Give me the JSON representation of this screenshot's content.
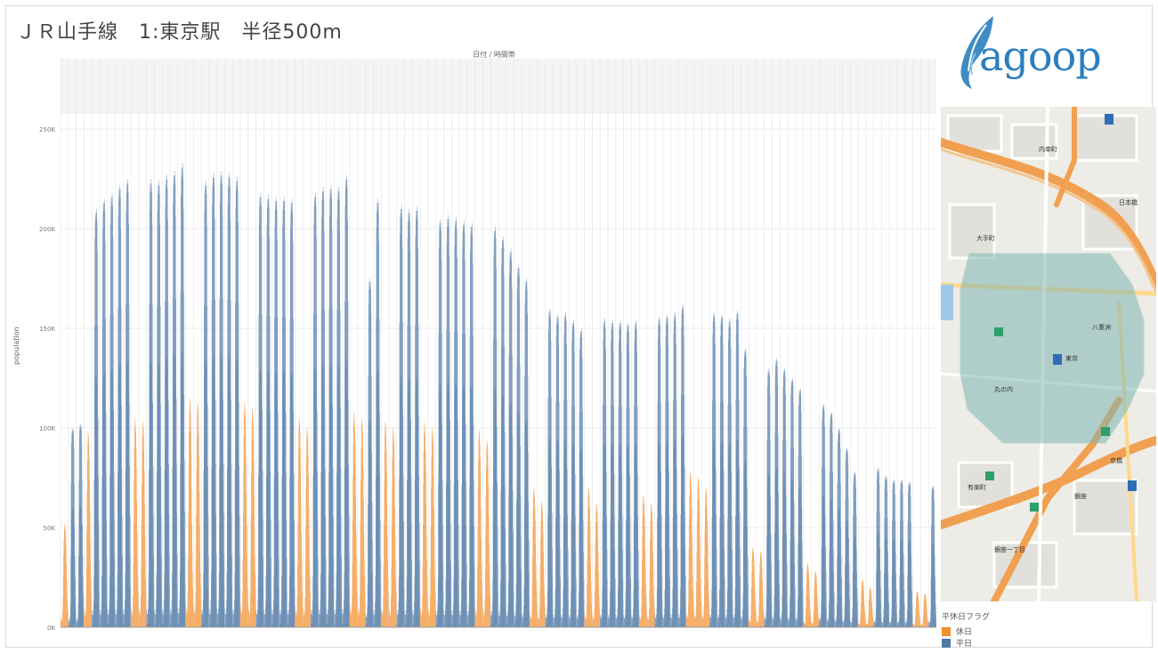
{
  "title": "ＪＲ山手線　1:東京駅　半径500m",
  "column_header_title": "日付 / 時間帯",
  "y_axis_title": "population",
  "logo_text": "agoop",
  "legend": {
    "title": "平休日フラグ",
    "items": [
      {
        "label": "休日",
        "color": "#f28e2b"
      },
      {
        "label": "平日",
        "color": "#4e79a7"
      }
    ]
  },
  "map": {
    "labels": [
      "内幸町",
      "大手町",
      "東京",
      "丸の内",
      "有楽町",
      "銀座",
      "日本橋",
      "京橋",
      "八重洲",
      "銀座一丁目"
    ]
  },
  "chart_data": {
    "type": "bar",
    "title": "ＪＲ山手線　1:東京駅　半径500m",
    "xlabel": "日付 / 時間帯",
    "ylabel": "population",
    "ylim": [
      0,
      250000
    ],
    "y_ticks": [
      "0K",
      "50K",
      "100K",
      "150K",
      "200K",
      "250K"
    ],
    "y_tick_values": [
      0,
      50000,
      100000,
      150000,
      200000,
      250000
    ],
    "series_colors": {
      "休日": "#f28e2b",
      "平日": "#4e79a7"
    },
    "days": [
      {
        "flag": "休日",
        "peak": 52000
      },
      {
        "flag": "平日",
        "peak": 100000
      },
      {
        "flag": "平日",
        "peak": 102000
      },
      {
        "flag": "休日",
        "peak": 98000
      },
      {
        "flag": "平日",
        "peak": 210000
      },
      {
        "flag": "平日",
        "peak": 215000
      },
      {
        "flag": "平日",
        "peak": 218000
      },
      {
        "flag": "平日",
        "peak": 222000
      },
      {
        "flag": "平日",
        "peak": 225000
      },
      {
        "flag": "休日",
        "peak": 105000
      },
      {
        "flag": "休日",
        "peak": 103000
      },
      {
        "flag": "平日",
        "peak": 225000
      },
      {
        "flag": "平日",
        "peak": 224000
      },
      {
        "flag": "平日",
        "peak": 227000
      },
      {
        "flag": "平日",
        "peak": 229000
      },
      {
        "flag": "平日",
        "peak": 233000
      },
      {
        "flag": "休日",
        "peak": 115000
      },
      {
        "flag": "休日",
        "peak": 113000
      },
      {
        "flag": "平日",
        "peak": 224000
      },
      {
        "flag": "平日",
        "peak": 228000
      },
      {
        "flag": "平日",
        "peak": 229000
      },
      {
        "flag": "平日",
        "peak": 228000
      },
      {
        "flag": "平日",
        "peak": 226000
      },
      {
        "flag": "休日",
        "peak": 113000
      },
      {
        "flag": "休日",
        "peak": 110000
      },
      {
        "flag": "平日",
        "peak": 218000
      },
      {
        "flag": "平日",
        "peak": 217000
      },
      {
        "flag": "平日",
        "peak": 216000
      },
      {
        "flag": "平日",
        "peak": 216000
      },
      {
        "flag": "平日",
        "peak": 215000
      },
      {
        "flag": "休日",
        "peak": 105000
      },
      {
        "flag": "休日",
        "peak": 100000
      },
      {
        "flag": "平日",
        "peak": 218000
      },
      {
        "flag": "平日",
        "peak": 221000
      },
      {
        "flag": "平日",
        "peak": 222000
      },
      {
        "flag": "平日",
        "peak": 221000
      },
      {
        "flag": "平日",
        "peak": 227000
      },
      {
        "flag": "休日",
        "peak": 108000
      },
      {
        "flag": "休日",
        "peak": 105000
      },
      {
        "flag": "平日",
        "peak": 175000
      },
      {
        "flag": "平日",
        "peak": 215000
      },
      {
        "flag": "休日",
        "peak": 103000
      },
      {
        "flag": "休日",
        "peak": 100000
      },
      {
        "flag": "平日",
        "peak": 212000
      },
      {
        "flag": "平日",
        "peak": 210000
      },
      {
        "flag": "平日",
        "peak": 211000
      },
      {
        "flag": "休日",
        "peak": 103000
      },
      {
        "flag": "休日",
        "peak": 100000
      },
      {
        "flag": "平日",
        "peak": 205000
      },
      {
        "flag": "平日",
        "peak": 207000
      },
      {
        "flag": "平日",
        "peak": 206000
      },
      {
        "flag": "平日",
        "peak": 204000
      },
      {
        "flag": "平日",
        "peak": 203000
      },
      {
        "flag": "休日",
        "peak": 99000
      },
      {
        "flag": "休日",
        "peak": 94000
      },
      {
        "flag": "平日",
        "peak": 201000
      },
      {
        "flag": "平日",
        "peak": 196000
      },
      {
        "flag": "平日",
        "peak": 190000
      },
      {
        "flag": "平日",
        "peak": 182000
      },
      {
        "flag": "平日",
        "peak": 175000
      },
      {
        "flag": "休日",
        "peak": 70000
      },
      {
        "flag": "休日",
        "peak": 63000
      },
      {
        "flag": "平日",
        "peak": 160000
      },
      {
        "flag": "平日",
        "peak": 157000
      },
      {
        "flag": "平日",
        "peak": 158000
      },
      {
        "flag": "平日",
        "peak": 154000
      },
      {
        "flag": "平日",
        "peak": 150000
      },
      {
        "flag": "休日",
        "peak": 70000
      },
      {
        "flag": "休日",
        "peak": 62000
      },
      {
        "flag": "平日",
        "peak": 155000
      },
      {
        "flag": "平日",
        "peak": 154000
      },
      {
        "flag": "平日",
        "peak": 154000
      },
      {
        "flag": "平日",
        "peak": 153000
      },
      {
        "flag": "平日",
        "peak": 154000
      },
      {
        "flag": "休日",
        "peak": 66000
      },
      {
        "flag": "休日",
        "peak": 62000
      },
      {
        "flag": "平日",
        "peak": 156000
      },
      {
        "flag": "平日",
        "peak": 157000
      },
      {
        "flag": "平日",
        "peak": 158000
      },
      {
        "flag": "平日",
        "peak": 162000
      },
      {
        "flag": "休日",
        "peak": 78000
      },
      {
        "flag": "休日",
        "peak": 75000
      },
      {
        "flag": "休日",
        "peak": 70000
      },
      {
        "flag": "平日",
        "peak": 158000
      },
      {
        "flag": "平日",
        "peak": 157000
      },
      {
        "flag": "平日",
        "peak": 155000
      },
      {
        "flag": "平日",
        "peak": 159000
      },
      {
        "flag": "平日",
        "peak": 140000
      },
      {
        "flag": "休日",
        "peak": 40000
      },
      {
        "flag": "休日",
        "peak": 38000
      },
      {
        "flag": "平日",
        "peak": 130000
      },
      {
        "flag": "平日",
        "peak": 135000
      },
      {
        "flag": "平日",
        "peak": 130000
      },
      {
        "flag": "平日",
        "peak": 125000
      },
      {
        "flag": "平日",
        "peak": 120000
      },
      {
        "flag": "休日",
        "peak": 32000
      },
      {
        "flag": "休日",
        "peak": 28000
      },
      {
        "flag": "平日",
        "peak": 112000
      },
      {
        "flag": "平日",
        "peak": 108000
      },
      {
        "flag": "平日",
        "peak": 100000
      },
      {
        "flag": "平日",
        "peak": 90000
      },
      {
        "flag": "平日",
        "peak": 78000
      },
      {
        "flag": "休日",
        "peak": 24000
      },
      {
        "flag": "休日",
        "peak": 20000
      },
      {
        "flag": "平日",
        "peak": 80000
      },
      {
        "flag": "平日",
        "peak": 76000
      },
      {
        "flag": "平日",
        "peak": 74000
      },
      {
        "flag": "平日",
        "peak": 74000
      },
      {
        "flag": "平日",
        "peak": 73000
      },
      {
        "flag": "休日",
        "peak": 18000
      },
      {
        "flag": "休日",
        "peak": 17000
      },
      {
        "flag": "平日",
        "peak": 71000
      }
    ]
  }
}
